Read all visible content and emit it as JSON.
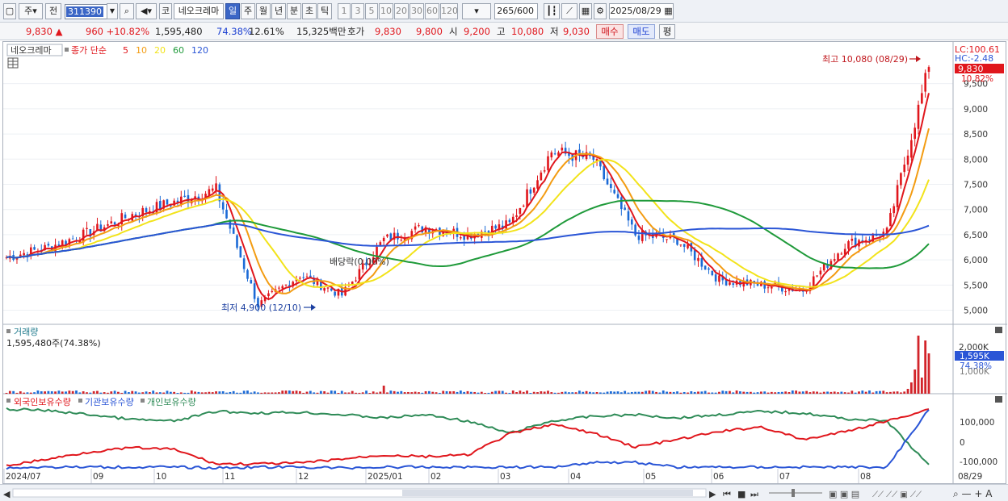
{
  "toolbar": {
    "market_label": "주",
    "prev_label": "전",
    "stock_code": "311390",
    "stock_type_label": "코",
    "stock_name": "네오크레마",
    "periods": [
      "일",
      "주",
      "월",
      "년",
      "분",
      "초",
      "틱"
    ],
    "active_period": "일",
    "intervals": [
      "1",
      "3",
      "5",
      "10",
      "20",
      "30",
      "60",
      "120"
    ],
    "count_value": "265",
    "count_total": "/600",
    "date": "2025/08/29"
  },
  "quote": {
    "price": "9,830",
    "change": "960",
    "change_pct": "+10.82%",
    "volume": "1,595,480",
    "volume_ratio": "74.38%",
    "turnover": "12.61%",
    "trade_value": "15,325백만",
    "hoga_label": "호가",
    "hoga_sell": "9,830",
    "hoga_buy": "9,800",
    "open_label": "시",
    "open": "9,200",
    "high_label": "고",
    "high": "10,080",
    "low_label": "저",
    "low": "9,030",
    "buy_button": "매수",
    "sell_button": "매도",
    "eval_button": "평"
  },
  "price_panel": {
    "stock_name": "네오크레마",
    "ma_label": "종가 단순",
    "ma_periods": [
      "5",
      "10",
      "20",
      "60",
      "120"
    ],
    "ma_colors": [
      "#e0161c",
      "#f39c12",
      "#f2e31a",
      "#1f9a3a",
      "#2a55d6"
    ],
    "lc": "LC:100.61",
    "hc": "HC:-2.48",
    "last_price_tag": "9,830",
    "last_pct_tag": "10.82%",
    "high_annotation": "최고 10,080 (08/29)",
    "low_annotation": "최저 4,900 (12/10)",
    "dividend_annotation": "배당락(0.00%)",
    "y_labels": [
      "9,500",
      "9,000",
      "8,500",
      "8,000",
      "7,500",
      "7,000",
      "6,500",
      "6,000",
      "5,500",
      "5,000"
    ]
  },
  "volume_panel": {
    "title": "거래량",
    "value_text": "1,595,480주(74.38%)",
    "y_labels": [
      "2,000K"
    ],
    "last_tag": "1,595K",
    "last_pct": "74.38%",
    "bottom_label": "1,000K"
  },
  "holding_panel": {
    "legend": [
      "외국인보유수량",
      "기관보유수량",
      "개인보유수량"
    ],
    "legend_colors": [
      "#e0161c",
      "#2a55d6",
      "#2e8b57"
    ],
    "y_labels": [
      "100,000",
      "0",
      "-100,000"
    ]
  },
  "time_axis": {
    "labels": [
      "2024/07",
      "09",
      "10",
      "11",
      "12",
      "2025/01",
      "02",
      "03",
      "04",
      "05",
      "06",
      "07",
      "08"
    ],
    "end_label": "08/29"
  },
  "chart_data": {
    "type": "line",
    "title": "",
    "series": [
      {
        "name": "",
        "values": [
          6050,
          6250,
          6550,
          6900,
          7150,
          7400,
          5100,
          5700,
          5300,
          6400,
          6650,
          6500,
          6700,
          8150,
          8000,
          6500,
          6400,
          5600,
          5500,
          5400,
          6300,
          6550,
          9830
        ]
      }
    ],
    "x": [
      "2024/07",
      "2024/08",
      "09",
      "10",
      "11",
      "11",
      "12",
      "12",
      "2025/01",
      "01",
      "02",
      "03",
      "03",
      "04",
      "05",
      "05",
      "06",
      "06",
      "07",
      "08",
      "08",
      "08",
      "08/29"
    ],
    "ylim": [
      4800,
      10200
    ]
  }
}
